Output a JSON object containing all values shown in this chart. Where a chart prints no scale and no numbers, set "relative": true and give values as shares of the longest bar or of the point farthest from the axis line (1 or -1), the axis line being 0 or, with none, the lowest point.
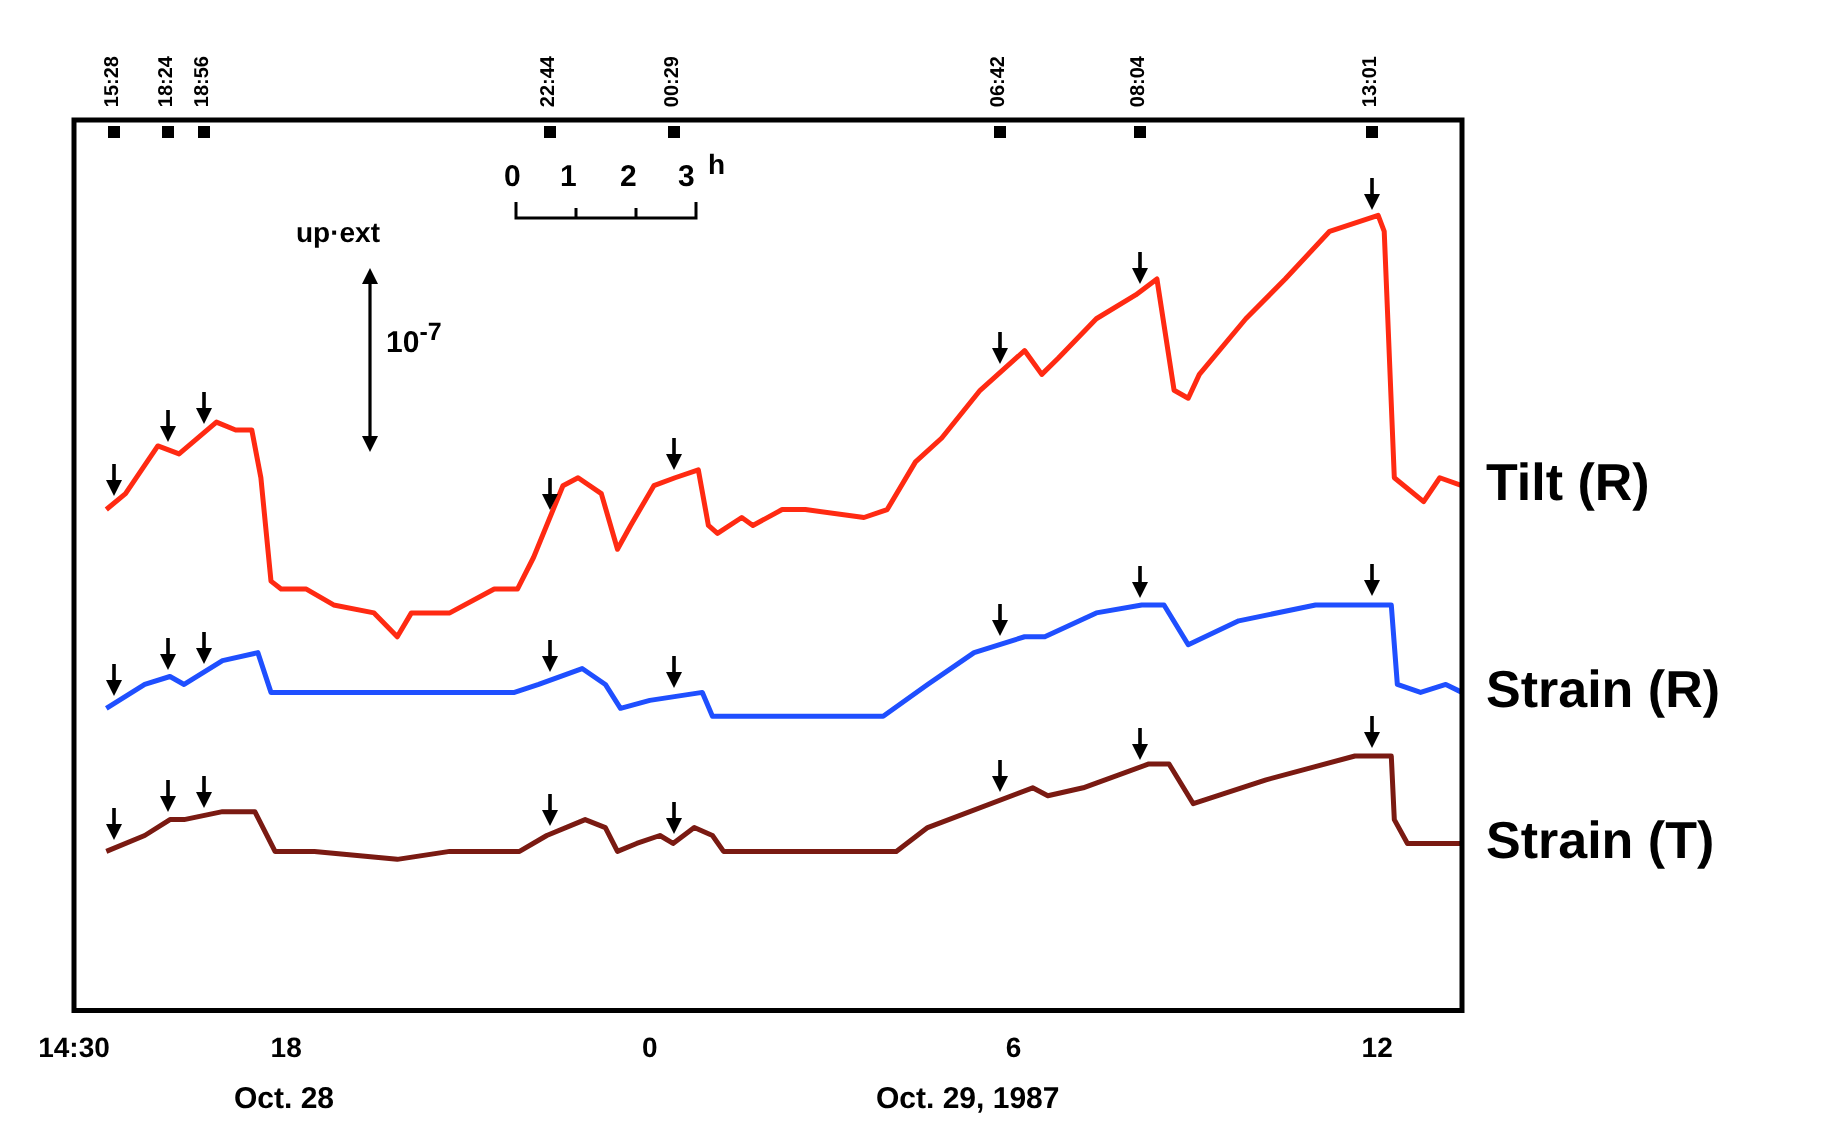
{
  "chart_data": {
    "type": "line",
    "relative": true,
    "grid": false,
    "legend": false,
    "marker": "none",
    "line_style": "solid",
    "xlim": [
      "1987-10-28T14:30",
      "1987-10-29T13:24"
    ],
    "xticks": [
      {
        "value": "1987-10-28T14:30",
        "label": "14:30"
      },
      {
        "value": "1987-10-28T18:00",
        "label": "18"
      },
      {
        "value": "1987-10-29T00:00",
        "label": "0"
      },
      {
        "value": "1987-10-29T06:00",
        "label": "6"
      },
      {
        "value": "1987-10-29T12:00",
        "label": "12"
      }
    ],
    "series": [
      {
        "name": "Tilt (R)",
        "color": "#ff2a12",
        "x": [
          "1987-10-28T15:02",
          "1987-10-28T15:21",
          "1987-10-28T15:53",
          "1987-10-28T16:14",
          "1987-10-28T16:51",
          "1987-10-28T17:10",
          "1987-10-28T17:26",
          "1987-10-28T17:35",
          "1987-10-28T17:45",
          "1987-10-28T17:55",
          "1987-10-28T18:20",
          "1987-10-28T18:47",
          "1987-10-28T19:27",
          "1987-10-28T19:50",
          "1987-10-28T20:04",
          "1987-10-28T20:42",
          "1987-10-28T21:26",
          "1987-10-28T21:49",
          "1987-10-28T22:05",
          "1987-10-28T22:34",
          "1987-10-28T22:49",
          "1987-10-28T23:12",
          "1987-10-28T23:28",
          "1987-10-28T23:41",
          "1987-10-29T00:04",
          "1987-10-29T00:25",
          "1987-10-29T00:48",
          "1987-10-29T00:58",
          "1987-10-29T01:07",
          "1987-10-29T01:31",
          "1987-10-29T01:42",
          "1987-10-29T02:11",
          "1987-10-29T02:34",
          "1987-10-29T03:32",
          "1987-10-29T03:55",
          "1987-10-29T04:23",
          "1987-10-29T04:49",
          "1987-10-29T05:27",
          "1987-10-29T06:11",
          "1987-10-29T06:28",
          "1987-10-29T06:44",
          "1987-10-29T07:22",
          "1987-10-29T08:01",
          "1987-10-29T08:22",
          "1987-10-29T08:39",
          "1987-10-29T08:53",
          "1987-10-29T09:04",
          "1987-10-29T09:50",
          "1987-10-29T10:29",
          "1987-10-29T11:13",
          "1987-10-29T12:01",
          "1987-10-29T12:07",
          "1987-10-29T12:17",
          "1987-10-29T12:46",
          "1987-10-29T13:02",
          "1987-10-29T13:24"
        ],
        "values": [
          0.63,
          0.65,
          0.71,
          0.7,
          0.74,
          0.73,
          0.73,
          0.67,
          0.54,
          0.53,
          0.53,
          0.51,
          0.5,
          0.47,
          0.5,
          0.5,
          0.53,
          0.53,
          0.57,
          0.66,
          0.67,
          0.65,
          0.58,
          0.61,
          0.66,
          0.67,
          0.68,
          0.61,
          0.6,
          0.62,
          0.61,
          0.63,
          0.63,
          0.62,
          0.63,
          0.69,
          0.72,
          0.78,
          0.83,
          0.8,
          0.82,
          0.87,
          0.9,
          0.92,
          0.78,
          0.77,
          0.8,
          0.87,
          0.92,
          0.98,
          1,
          0.98,
          0.67,
          0.64,
          0.67,
          0.66
        ]
      },
      {
        "name": "Strain (R)",
        "color": "#1f4fff",
        "x": [
          "1987-10-28T15:02",
          "1987-10-28T15:40",
          "1987-10-28T16:05",
          "1987-10-28T16:19",
          "1987-10-28T16:57",
          "1987-10-28T17:32",
          "1987-10-28T17:45",
          "1987-10-28T18:08",
          "1987-10-28T21:46",
          "1987-10-28T22:10",
          "1987-10-28T22:53",
          "1987-10-28T23:16",
          "1987-10-28T23:31",
          "1987-10-29T00:00",
          "1987-10-29T00:52",
          "1987-10-29T01:02",
          "1987-10-29T01:23",
          "1987-10-29T01:36",
          "1987-10-29T02:40",
          "1987-10-29T03:51",
          "1987-10-29T04:35",
          "1987-10-29T05:21",
          "1987-10-29T06:11",
          "1987-10-29T06:31",
          "1987-10-29T07:22",
          "1987-10-29T08:07",
          "1987-10-29T08:29",
          "1987-10-29T08:53",
          "1987-10-29T09:43",
          "1987-10-29T10:59",
          "1987-10-29T12:14",
          "1987-10-29T12:20",
          "1987-10-29T12:43",
          "1987-10-29T13:08",
          "1987-10-29T13:24"
        ],
        "values": [
          0.38,
          0.41,
          0.42,
          0.41,
          0.44,
          0.45,
          0.4,
          0.4,
          0.4,
          0.41,
          0.43,
          0.41,
          0.38,
          0.39,
          0.4,
          0.37,
          0.37,
          0.37,
          0.37,
          0.37,
          0.41,
          0.45,
          0.47,
          0.47,
          0.5,
          0.51,
          0.51,
          0.46,
          0.49,
          0.51,
          0.51,
          0.41,
          0.4,
          0.41,
          0.4
        ]
      },
      {
        "name": "Strain (T)",
        "color": "#7a1a12",
        "x": [
          "1987-10-28T15:02",
          "1987-10-28T15:40",
          "1987-10-28T16:05",
          "1987-10-28T16:19",
          "1987-10-28T16:57",
          "1987-10-28T17:16",
          "1987-10-28T17:29",
          "1987-10-28T17:49",
          "1987-10-28T18:28",
          "1987-10-28T19:50",
          "1987-10-28T20:42",
          "1987-10-28T21:51",
          "1987-10-28T22:18",
          "1987-10-28T22:56",
          "1987-10-28T23:16",
          "1987-10-28T23:28",
          "1987-10-28T23:47",
          "1987-10-29T00:10",
          "1987-10-29T00:23",
          "1987-10-29T00:44",
          "1987-10-29T01:02",
          "1987-10-29T01:13",
          "1987-10-29T01:36",
          "1987-10-29T04:04",
          "1987-10-29T04:35",
          "1987-10-29T06:19",
          "1987-10-29T06:34",
          "1987-10-29T07:09",
          "1987-10-29T08:14",
          "1987-10-29T08:34",
          "1987-10-29T08:58",
          "1987-10-29T10:10",
          "1987-10-29T11:38",
          "1987-10-29T12:14",
          "1987-10-29T12:17",
          "1987-10-29T12:30",
          "1987-10-29T13:24"
        ],
        "values": [
          0.2,
          0.22,
          0.24,
          0.24,
          0.25,
          0.25,
          0.25,
          0.2,
          0.2,
          0.19,
          0.2,
          0.2,
          0.22,
          0.24,
          0.23,
          0.2,
          0.21,
          0.22,
          0.21,
          0.23,
          0.22,
          0.2,
          0.2,
          0.2,
          0.23,
          0.28,
          0.27,
          0.28,
          0.31,
          0.31,
          0.26,
          0.29,
          0.32,
          0.32,
          0.24,
          0.21,
          0.21
        ]
      }
    ],
    "annotations": [
      "15:28",
      "18:24",
      "18:56",
      "22:44",
      "00:29",
      "06:42",
      "08:04",
      "13:01",
      "up·ext",
      "10$^{-7}$",
      "0",
      "1",
      "2",
      "3",
      "h",
      "Oct. 28",
      "Oct. 29, 1987"
    ]
  }
}
